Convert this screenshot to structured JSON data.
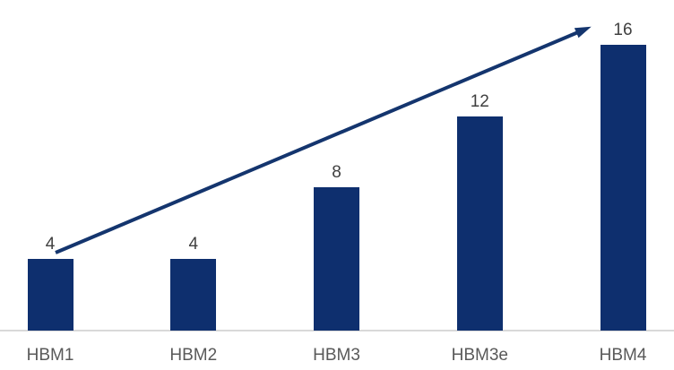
{
  "chart_data": {
    "type": "bar",
    "categories": [
      "HBM1",
      "HBM2",
      "HBM3",
      "HBM3e",
      "HBM4"
    ],
    "values": [
      4,
      4,
      8,
      12,
      16
    ],
    "title": "",
    "xlabel": "",
    "ylabel": "",
    "ylim": [
      0,
      16
    ],
    "grid": false,
    "legend": false,
    "bar_color": "#0e2f6e",
    "value_label_color": "#404040",
    "category_label_color": "#595959",
    "axis_line_color": "#d9d9d9",
    "annotation": {
      "type": "growth-trend-arrow",
      "direction": "up-right",
      "color": "#14356e"
    }
  }
}
